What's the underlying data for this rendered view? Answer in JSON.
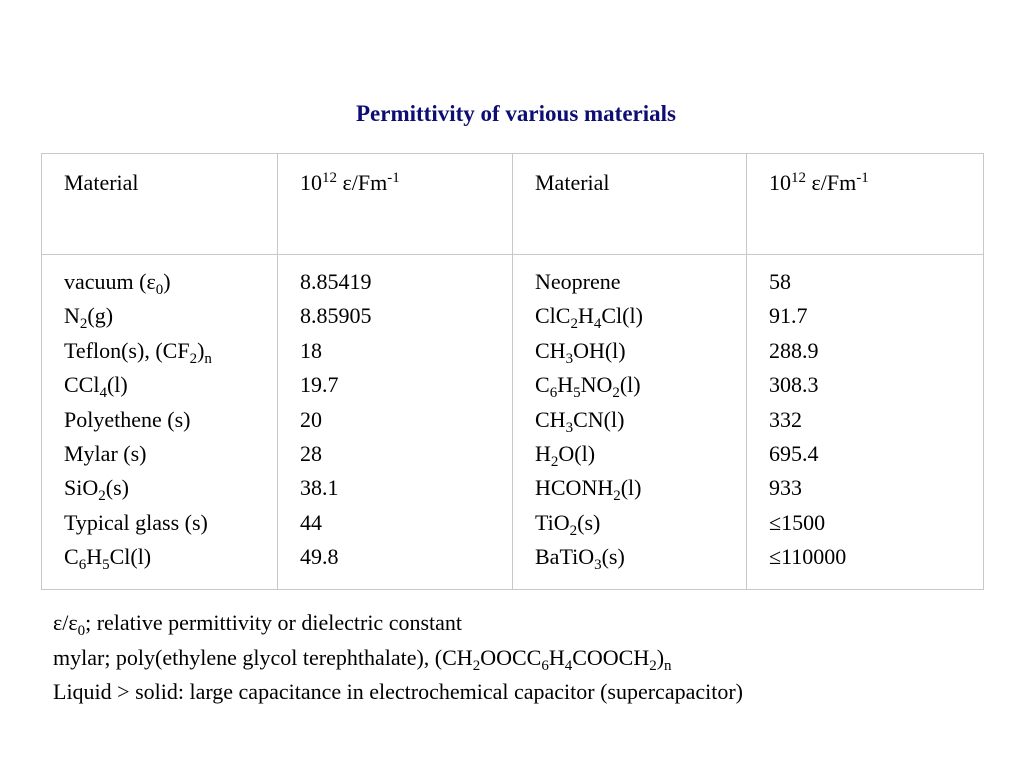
{
  "title": "Permittivity of various materials",
  "table": {
    "headers": [
      "Material",
      "10¹² ε/Fm⁻¹",
      "Material",
      "10¹² ε/Fm⁻¹"
    ],
    "left_materials": [
      "vacuum (ε₀)",
      "N₂(g)",
      "Teflon(s), (CF₂)ₙ",
      "CCl₄(l)",
      "Polyethene (s)",
      "Mylar (s)",
      "SiO₂(s)",
      "Typical glass (s)",
      "C₆H₅Cl(l)"
    ],
    "left_values": [
      "8.85419",
      "8.85905",
      "18",
      "19.7",
      "20",
      "28",
      "38.1",
      "44",
      "49.8"
    ],
    "right_materials": [
      "Neoprene",
      "ClC₂H₄Cl(l)",
      "CH₃OH(l)",
      "C₆H₅NO₂(l)",
      "CH₃CN(l)",
      "H₂O(l)",
      "HCONH₂(l)",
      "TiO₂(s)",
      "BaTiO₃(s)"
    ],
    "right_values": [
      "58",
      "91.7",
      "288.9",
      "308.3",
      "332",
      "695.4",
      "933",
      "≤1500",
      "≤110000"
    ]
  },
  "notes": [
    "ε/ε₀; relative permittivity or dielectric constant",
    "mylar; poly(ethylene glycol terephthalate), (CH₂OOCC₆H₄COOCH₂)ₙ",
    "Liquid > solid: large capacitance in electrochemical capacitor (supercapacitor)"
  ]
}
